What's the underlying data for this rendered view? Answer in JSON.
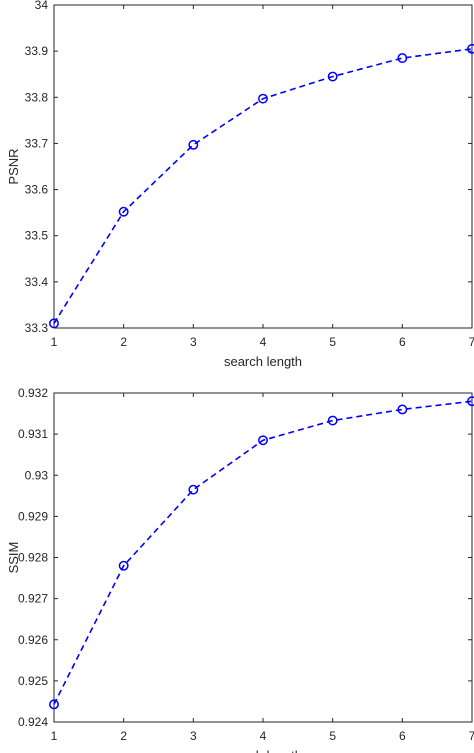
{
  "chart_data": [
    {
      "type": "line",
      "xlabel": "search length",
      "ylabel": "PSNR",
      "xlim": [
        1,
        7
      ],
      "ylim": [
        33.3,
        34
      ],
      "xticks": [
        "1",
        "2",
        "3",
        "4",
        "5",
        "6",
        "7"
      ],
      "yticks": [
        "33.3",
        "33.4",
        "33.5",
        "33.6",
        "33.7",
        "33.8",
        "33.9",
        "34"
      ],
      "grid": false,
      "line_style": "dashed",
      "marker": "circle",
      "color": "#0000ff",
      "x": [
        1,
        2,
        3,
        4,
        5,
        6,
        7
      ],
      "values": [
        33.31,
        33.552,
        33.697,
        33.797,
        33.845,
        33.885,
        33.905
      ]
    },
    {
      "type": "line",
      "xlabel": "search length",
      "ylabel": "SSIM",
      "xlim": [
        1,
        7
      ],
      "ylim": [
        0.924,
        0.932
      ],
      "xticks": [
        "1",
        "2",
        "3",
        "4",
        "5",
        "6",
        "7"
      ],
      "yticks": [
        "0.924",
        "0.925",
        "0.926",
        "0.927",
        "0.928",
        "0.929",
        "0.93",
        "0.931",
        "0.932"
      ],
      "grid": false,
      "line_style": "dashed",
      "marker": "circle",
      "color": "#0000ff",
      "x": [
        1,
        2,
        3,
        4,
        5,
        6,
        7
      ],
      "values": [
        0.92443,
        0.9278,
        0.92965,
        0.93085,
        0.93133,
        0.9316,
        0.9318
      ]
    }
  ]
}
